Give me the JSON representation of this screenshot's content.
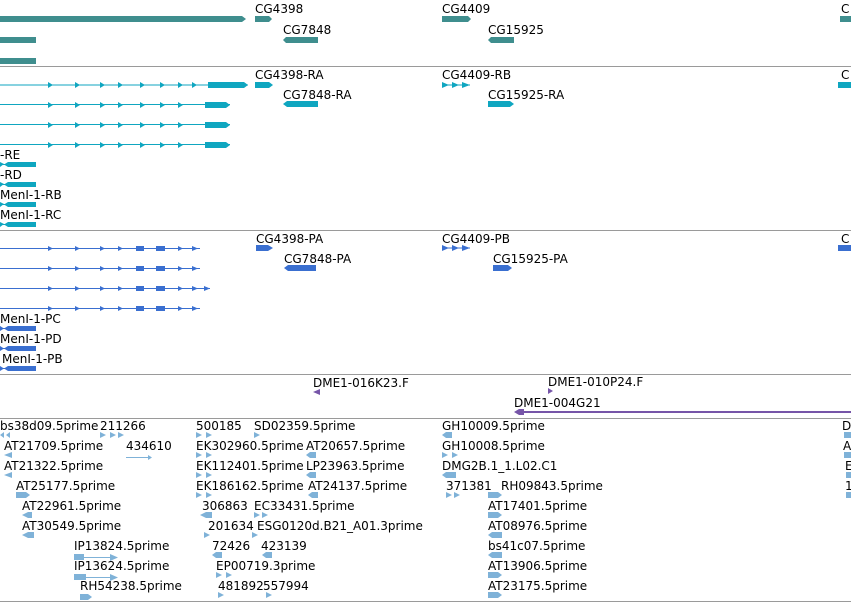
{
  "colors": {
    "gene": "#3f8e8e",
    "transcript_cyan": "#0fa6c0",
    "transcript_blue": "#3a6fd0",
    "clone": "#7655a8",
    "est": "#7fb2d8",
    "divider": "#9a9a9a"
  },
  "tracks": {
    "genes": {
      "labels": [
        "CG4398",
        "CG7848",
        "CG4409",
        "CG15925",
        "C"
      ]
    },
    "transcripts_a": {
      "labels": [
        "CG4398-RA",
        "CG7848-RA",
        "CG4409-RB",
        "CG15925-RA",
        "-RE",
        "-RD",
        "MenI-1-RB",
        "MenI-1-RC",
        "C"
      ]
    },
    "transcripts_b": {
      "labels": [
        "CG4398-PA",
        "CG7848-PA",
        "CG4409-PB",
        "CG15925-PA",
        "MenI-1-PC",
        "MenI-1-PD",
        "MenI-1-PB",
        "C"
      ]
    },
    "clones": {
      "labels": [
        "DME1-016K23.F",
        "DME1-010P24.F",
        "DME1-004G21"
      ]
    },
    "ests": {
      "labels": [
        "bs38d09.5prime",
        "211266",
        "AT21709.5prime",
        "434610",
        "AT21322.5prime",
        "AT25177.5prime",
        "AT22961.5prime",
        "AT30549.5prime",
        "IP13824.5prime",
        "IP13624.5prime",
        "RH54238.5prime",
        "500185",
        "SD02359.5prime",
        "EK302960.5prime",
        "AT20657.5prime",
        "EK112401.5prime",
        "LP23963.5prime",
        "EK186162.5prime",
        "AT24137.5prime",
        "306863",
        "EC33431.5prime",
        "201634",
        "ESG0120d.B21_A01.3prime",
        "72426",
        "423139",
        "EP00719.3prime",
        "481892",
        "557994",
        "GH10009.5prime",
        "GH10008.5prime",
        "DMG2B.1_1.L02.C1",
        "371381",
        "RH09843.5prime",
        "AT17401.5prime",
        "AT08976.5prime",
        "bs41c07.5prime",
        "AT13906.5prime",
        "AT23175.5prime",
        "D",
        "A",
        "E",
        "1"
      ]
    }
  }
}
